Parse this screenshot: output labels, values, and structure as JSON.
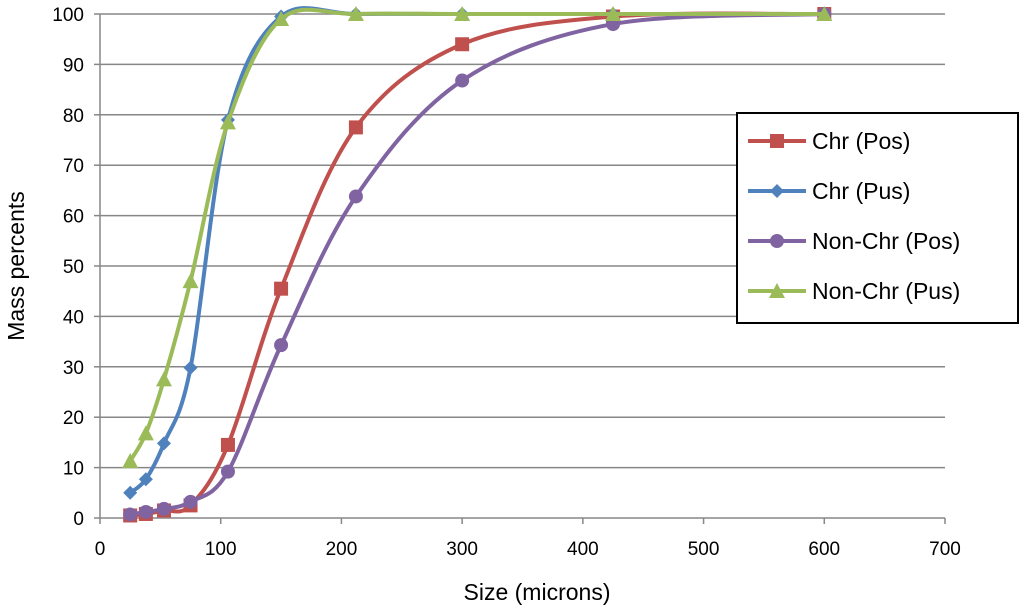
{
  "chart_data": {
    "type": "line",
    "title": "",
    "xlabel": "Size (microns)",
    "ylabel": "Mass percents",
    "xlim": [
      0,
      700
    ],
    "ylim": [
      0,
      100
    ],
    "xticks": [
      0,
      100,
      200,
      300,
      400,
      500,
      600,
      700
    ],
    "yticks": [
      0,
      10,
      20,
      30,
      40,
      50,
      60,
      70,
      80,
      90,
      100
    ],
    "grid": "horizontal",
    "legend_position": "right",
    "x": [
      25,
      38,
      53,
      75,
      106,
      150,
      212,
      300,
      425,
      600
    ],
    "series": [
      {
        "name": "Chr (Pos)",
        "color": "#C0504D",
        "marker": "square",
        "values": [
          0.5,
          0.8,
          1.5,
          2.5,
          14.5,
          45.5,
          77.5,
          94,
          99.5,
          100
        ]
      },
      {
        "name": "Chr (Pus)",
        "color": "#4F81BD",
        "marker": "diamond",
        "values": [
          5,
          7.7,
          14.8,
          29.8,
          79,
          99.5,
          100,
          100,
          100,
          100
        ]
      },
      {
        "name": "Non-Chr (Pos)",
        "color": "#8064A2",
        "marker": "circle",
        "values": [
          0.7,
          1.2,
          1.8,
          3.2,
          9.2,
          34.3,
          63.8,
          86.8,
          98,
          100
        ]
      },
      {
        "name": "Non-Chr (Pus)",
        "color": "#9BBB59",
        "marker": "triangle",
        "values": [
          11.3,
          16.8,
          27.5,
          47,
          78.5,
          99,
          100,
          100,
          100,
          100
        ]
      }
    ]
  }
}
